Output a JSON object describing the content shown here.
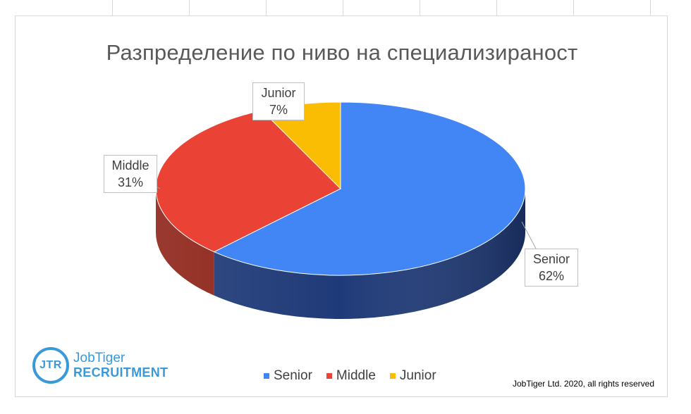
{
  "chart_data": {
    "type": "pie",
    "title": "Разпределение по ниво на специализираност",
    "categories": [
      "Senior",
      "Middle",
      "Junior"
    ],
    "values": [
      62,
      31,
      7
    ],
    "data_labels": [
      {
        "name": "Senior",
        "value": "62%"
      },
      {
        "name": "Middle",
        "value": "31%"
      },
      {
        "name": "Junior",
        "value": "7%"
      }
    ],
    "colors": [
      "#4285f4",
      "#ea4335",
      "#fbbc04"
    ],
    "side_colors": [
      "#1f3a78",
      "#8e2318",
      "#a07400"
    ],
    "legend": "bottom",
    "legend_entries": [
      "Senior",
      "Middle",
      "Junior"
    ]
  },
  "logo": {
    "mark": "JTR",
    "name": "JobTiger",
    "sub": "RECRUITMENT"
  },
  "footer": {
    "copyright": "JobTiger Ltd. 2020, all rights reserved"
  }
}
